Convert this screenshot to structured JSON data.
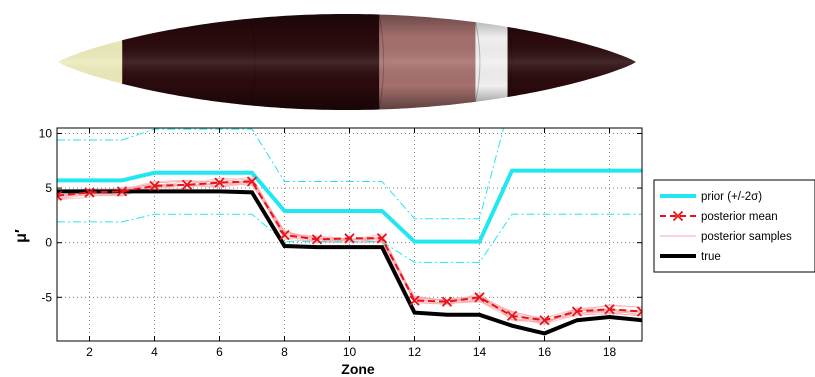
{
  "chart_data": {
    "type": "line",
    "xlabel": "Zone",
    "ylabel": "μ′",
    "xlim": [
      1,
      19
    ],
    "ylim": [
      -9,
      10.5
    ],
    "xticks": [
      2,
      4,
      6,
      8,
      10,
      12,
      14,
      16,
      18
    ],
    "yticks": [
      -5,
      0,
      5,
      10
    ],
    "xtick_labels": [
      "2",
      "4",
      "6",
      "8",
      "10",
      "12",
      "14",
      "16",
      "18"
    ],
    "ytick_labels": [
      "-5",
      "0",
      "5",
      "10"
    ],
    "grid": true,
    "legend_position": "right",
    "x": [
      1,
      2,
      3,
      4,
      5,
      6,
      7,
      8,
      9,
      10,
      11,
      12,
      13,
      14,
      15,
      16,
      17,
      18,
      19
    ],
    "prior_mean_steps": [
      [
        1,
        5.7
      ],
      [
        3,
        5.7
      ],
      [
        4,
        6.4
      ],
      [
        7,
        6.4
      ],
      [
        8,
        2.9
      ],
      [
        11,
        2.9
      ],
      [
        12,
        0.1
      ],
      [
        14,
        0.1
      ],
      [
        15,
        6.6
      ],
      [
        19,
        6.6
      ]
    ],
    "prior_upper_steps": [
      [
        1,
        9.4
      ],
      [
        3,
        9.4
      ],
      [
        4,
        10.4
      ],
      [
        7,
        10.4
      ],
      [
        8,
        5.6
      ],
      [
        11,
        5.6
      ],
      [
        12,
        2.2
      ],
      [
        14,
        2.2
      ],
      [
        14.75,
        10.6
      ]
    ],
    "prior_lower_steps": [
      [
        1,
        1.9
      ],
      [
        3,
        1.9
      ],
      [
        4,
        2.6
      ],
      [
        7,
        2.6
      ],
      [
        8,
        0.1
      ],
      [
        11,
        0.1
      ],
      [
        12,
        -1.8
      ],
      [
        14,
        -1.8
      ],
      [
        15,
        2.6
      ],
      [
        19,
        2.6
      ]
    ],
    "series": [
      {
        "name": "prior (+/-2σ)",
        "color": "#22e6f0",
        "style": "solid-thick"
      },
      {
        "name": "posterior mean",
        "color": "#e8131a",
        "style": "dashed-x",
        "values": [
          4.3,
          4.6,
          4.7,
          5.2,
          5.3,
          5.5,
          5.6,
          0.7,
          0.3,
          0.4,
          0.4,
          -5.3,
          -5.4,
          -5.0,
          -6.7,
          -7.1,
          -6.3,
          -6.1,
          -6.3
        ]
      },
      {
        "name": "posterior samples",
        "color": "#f6a9ad",
        "style": "thin"
      },
      {
        "name": "true",
        "color": "#000000",
        "style": "solid-thick",
        "values": [
          4.7,
          4.7,
          4.7,
          4.7,
          4.7,
          4.7,
          4.6,
          -0.3,
          -0.4,
          -0.4,
          -0.4,
          -6.4,
          -6.6,
          -6.6,
          -7.6,
          -8.3,
          -7.1,
          -6.8,
          -7.1
        ]
      }
    ],
    "zone_strip": {
      "colors": [
        "#ecebbb",
        "#2a0a0d",
        "#2a0a0d",
        "#a5706e",
        "#f0f0f0",
        "#2a0a0d"
      ],
      "zone_bounds": [
        1,
        3,
        7,
        11,
        14,
        15,
        19
      ]
    }
  }
}
